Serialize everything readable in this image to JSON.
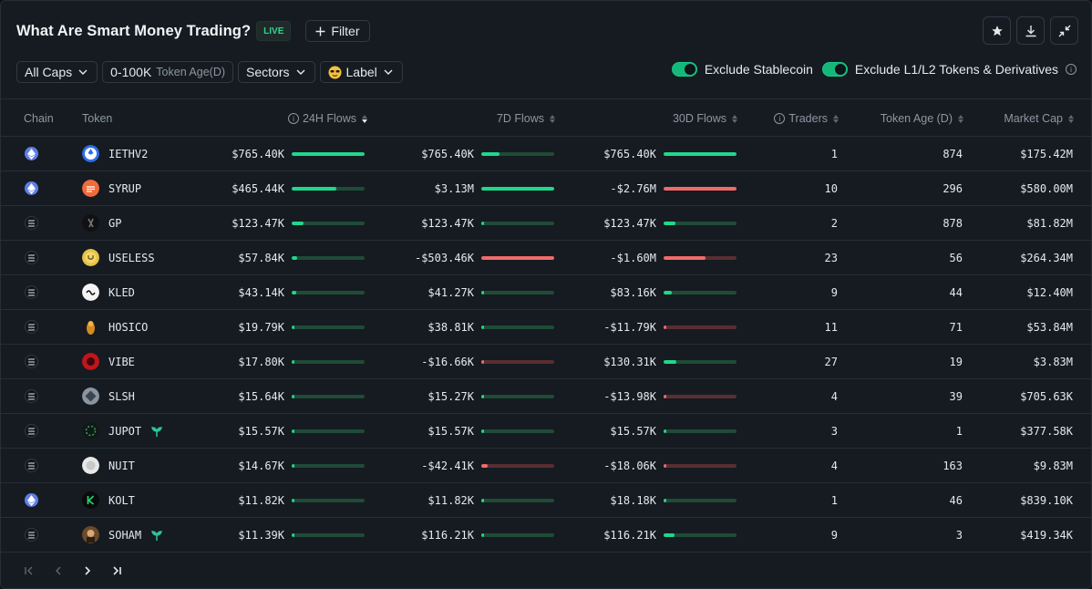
{
  "header": {
    "title": "What Are Smart Money Trading?",
    "live": "LIVE",
    "filter_label": "Filter"
  },
  "controls": {
    "caps": "All Caps",
    "token_age_value": "0-100K",
    "token_age_label": "Token Age(D)",
    "sectors": "Sectors",
    "label": "Label"
  },
  "toggles": {
    "exclude_stablecoin": "Exclude Stablecoin",
    "exclude_l1l2": "Exclude L1/L2 Tokens & Derivatives"
  },
  "columns": {
    "chain": "Chain",
    "token": "Token",
    "flows_24h": "24H Flows",
    "flows_7d": "7D Flows",
    "flows_30d": "30D Flows",
    "traders": "Traders",
    "token_age": "Token Age (D)",
    "market_cap": "Market Cap"
  },
  "rows": [
    {
      "chain": "ethereum",
      "token": "IETHV2",
      "icon": "ieth-icon",
      "f24": "$765.40K",
      "f24_pct": 1.0,
      "f24_neg": false,
      "f7": "$765.40K",
      "f7_pct": 0.25,
      "f7_neg": false,
      "f30": "$765.40K",
      "f30_pct": 1.0,
      "f30_neg": false,
      "traders": "1",
      "age": "874",
      "mcap": "$175.42M"
    },
    {
      "chain": "ethereum",
      "token": "SYRUP",
      "icon": "syrup-icon",
      "f24": "$465.44K",
      "f24_pct": 0.61,
      "f24_neg": false,
      "f7": "$3.13M",
      "f7_pct": 1.0,
      "f7_neg": false,
      "f30": "-$2.76M",
      "f30_pct": 1.0,
      "f30_neg": true,
      "traders": "10",
      "age": "296",
      "mcap": "$580.00M"
    },
    {
      "chain": "solana",
      "token": "GP",
      "icon": "gp-icon",
      "f24": "$123.47K",
      "f24_pct": 0.16,
      "f24_neg": false,
      "f7": "$123.47K",
      "f7_pct": 0.04,
      "f7_neg": false,
      "f30": "$123.47K",
      "f30_pct": 0.16,
      "f30_neg": false,
      "traders": "2",
      "age": "878",
      "mcap": "$81.82M"
    },
    {
      "chain": "solana",
      "token": "USELESS",
      "icon": "useless-icon",
      "f24": "$57.84K",
      "f24_pct": 0.08,
      "f24_neg": false,
      "f7": "-$503.46K",
      "f7_pct": 1.0,
      "f7_neg": true,
      "f30": "-$1.60M",
      "f30_pct": 0.58,
      "f30_neg": true,
      "traders": "23",
      "age": "56",
      "mcap": "$264.34M"
    },
    {
      "chain": "solana",
      "token": "KLED",
      "icon": "kled-icon",
      "f24": "$43.14K",
      "f24_pct": 0.06,
      "f24_neg": false,
      "f7": "$41.27K",
      "f7_pct": 0.01,
      "f7_neg": false,
      "f30": "$83.16K",
      "f30_pct": 0.11,
      "f30_neg": false,
      "traders": "9",
      "age": "44",
      "mcap": "$12.40M"
    },
    {
      "chain": "solana",
      "token": "HOSICO",
      "icon": "hosico-icon",
      "f24": "$19.79K",
      "f24_pct": 0.03,
      "f24_neg": false,
      "f7": "$38.81K",
      "f7_pct": 0.01,
      "f7_neg": false,
      "f30": "-$11.79K",
      "f30_pct": 0.01,
      "f30_neg": true,
      "traders": "11",
      "age": "71",
      "mcap": "$53.84M"
    },
    {
      "chain": "solana",
      "token": "VIBE",
      "icon": "vibe-icon",
      "f24": "$17.80K",
      "f24_pct": 0.02,
      "f24_neg": false,
      "f7": "-$16.66K",
      "f7_pct": 0.04,
      "f7_neg": true,
      "f30": "$130.31K",
      "f30_pct": 0.17,
      "f30_neg": false,
      "traders": "27",
      "age": "19",
      "mcap": "$3.83M"
    },
    {
      "chain": "solana",
      "token": "SLSH",
      "icon": "slsh-icon",
      "f24": "$15.64K",
      "f24_pct": 0.02,
      "f24_neg": false,
      "f7": "$15.27K",
      "f7_pct": 0.01,
      "f7_neg": false,
      "f30": "-$13.98K",
      "f30_pct": 0.01,
      "f30_neg": true,
      "traders": "4",
      "age": "39",
      "mcap": "$705.63K"
    },
    {
      "chain": "solana",
      "token": "JUPOT",
      "icon": "jupot-icon",
      "badge": true,
      "f24": "$15.57K",
      "f24_pct": 0.02,
      "f24_neg": false,
      "f7": "$15.57K",
      "f7_pct": 0.01,
      "f7_neg": false,
      "f30": "$15.57K",
      "f30_pct": 0.02,
      "f30_neg": false,
      "traders": "3",
      "age": "1",
      "mcap": "$377.58K"
    },
    {
      "chain": "solana",
      "token": "NUIT",
      "icon": "nuit-icon",
      "f24": "$14.67K",
      "f24_pct": 0.02,
      "f24_neg": false,
      "f7": "-$42.41K",
      "f7_pct": 0.09,
      "f7_neg": true,
      "f30": "-$18.06K",
      "f30_pct": 0.01,
      "f30_neg": true,
      "traders": "4",
      "age": "163",
      "mcap": "$9.83M"
    },
    {
      "chain": "ethereum",
      "token": "KOLT",
      "icon": "kolt-icon",
      "f24": "$11.82K",
      "f24_pct": 0.02,
      "f24_neg": false,
      "f7": "$11.82K",
      "f7_pct": 0.01,
      "f7_neg": false,
      "f30": "$18.18K",
      "f30_pct": 0.02,
      "f30_neg": false,
      "traders": "1",
      "age": "46",
      "mcap": "$839.10K"
    },
    {
      "chain": "solana",
      "token": "SOHAM",
      "icon": "soham-icon",
      "badge": true,
      "f24": "$11.39K",
      "f24_pct": 0.01,
      "f24_neg": false,
      "f7": "$116.21K",
      "f7_pct": 0.04,
      "f7_neg": false,
      "f30": "$116.21K",
      "f30_pct": 0.15,
      "f30_neg": false,
      "traders": "9",
      "age": "3",
      "mcap": "$419.34K"
    }
  ],
  "colors": {
    "positive": "#1fd88b",
    "negative": "#f06a6a",
    "accent": "#14b87a"
  }
}
